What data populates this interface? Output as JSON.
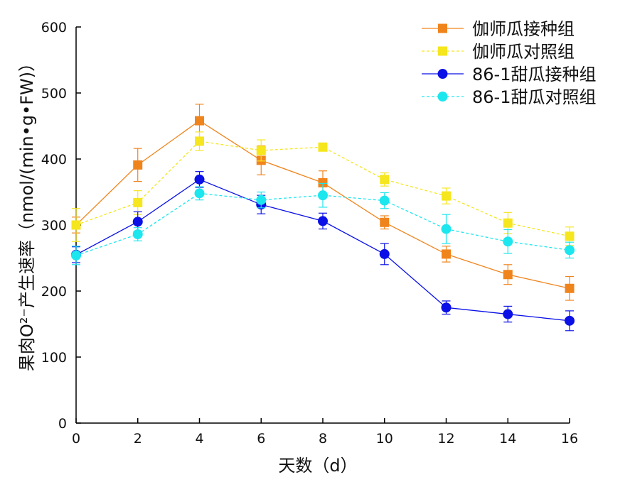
{
  "chart_data": {
    "type": "line",
    "xlabel": "天数（d）",
    "ylabel": "果肉O²⁻产生速率（nmol/(min•g•FW)）",
    "x": [
      0,
      2,
      4,
      6,
      8,
      10,
      12,
      14,
      16
    ],
    "xlim": [
      0,
      16
    ],
    "ylim": [
      0,
      600
    ],
    "xticks": [
      "0",
      "2",
      "4",
      "6",
      "8",
      "10",
      "12",
      "14",
      "16"
    ],
    "yticks": [
      "0",
      "100",
      "200",
      "300",
      "400",
      "500",
      "600"
    ],
    "grid": false,
    "legend_position": "top-right",
    "series": [
      {
        "name": "伽师瓜接种组",
        "color": "#F0841C",
        "marker": "square",
        "dash": "solid",
        "values": [
          300,
          391,
          458,
          398,
          364,
          304,
          256,
          225,
          204
        ],
        "errors": [
          12,
          25,
          25,
          22,
          18,
          10,
          12,
          15,
          18
        ]
      },
      {
        "name": "伽师瓜对照组",
        "color": "#F5E61E",
        "marker": "square",
        "dash": "dashed",
        "values": [
          300,
          334,
          427,
          413,
          418,
          369,
          344,
          303,
          283
        ],
        "errors": [
          25,
          18,
          14,
          16,
          5,
          10,
          12,
          16,
          14
        ]
      },
      {
        "name": "86-1甜瓜接种组",
        "color": "#0A10E6",
        "marker": "circle",
        "dash": "solid",
        "values": [
          255,
          305,
          369,
          331,
          306,
          256,
          175,
          165,
          155
        ],
        "errors": [
          12,
          15,
          12,
          14,
          12,
          16,
          10,
          12,
          15
        ]
      },
      {
        "name": "86-1甜瓜对照组",
        "color": "#1CE6EE",
        "marker": "circle",
        "dash": "dashed",
        "values": [
          254,
          286,
          348,
          338,
          345,
          337,
          294,
          275,
          262
        ],
        "errors": [
          14,
          10,
          10,
          12,
          18,
          12,
          22,
          18,
          12
        ]
      }
    ]
  }
}
